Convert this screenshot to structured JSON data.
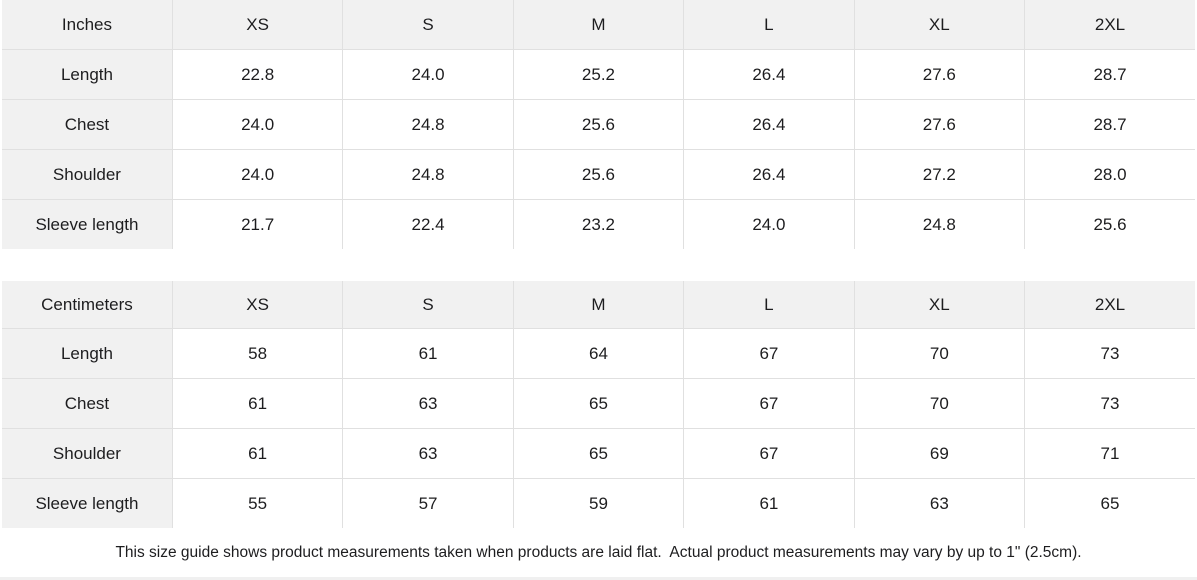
{
  "colors": {
    "header_bg": "#f1f1f1",
    "grid_border": "#e0e0e0",
    "text": "#1d1d1f",
    "background": "#ffffff"
  },
  "tables": [
    {
      "unit_label": "Inches",
      "columns": [
        "XS",
        "S",
        "M",
        "L",
        "XL",
        "2XL"
      ],
      "rows": [
        {
          "label": "Length",
          "values": [
            "22.8",
            "24.0",
            "25.2",
            "26.4",
            "27.6",
            "28.7"
          ]
        },
        {
          "label": "Chest",
          "values": [
            "24.0",
            "24.8",
            "25.6",
            "26.4",
            "27.6",
            "28.7"
          ]
        },
        {
          "label": "Shoulder",
          "values": [
            "24.0",
            "24.8",
            "25.6",
            "26.4",
            "27.2",
            "28.0"
          ]
        },
        {
          "label": "Sleeve length",
          "values": [
            "21.7",
            "22.4",
            "23.2",
            "24.0",
            "24.8",
            "25.6"
          ]
        }
      ]
    },
    {
      "unit_label": "Centimeters",
      "columns": [
        "XS",
        "S",
        "M",
        "L",
        "XL",
        "2XL"
      ],
      "rows": [
        {
          "label": "Length",
          "values": [
            "58",
            "61",
            "64",
            "67",
            "70",
            "73"
          ]
        },
        {
          "label": "Chest",
          "values": [
            "61",
            "63",
            "65",
            "67",
            "70",
            "73"
          ]
        },
        {
          "label": "Shoulder",
          "values": [
            "61",
            "63",
            "65",
            "67",
            "69",
            "71"
          ]
        },
        {
          "label": "Sleeve length",
          "values": [
            "55",
            "57",
            "59",
            "61",
            "63",
            "65"
          ]
        }
      ]
    }
  ],
  "footer": {
    "note": "This size guide shows product measurements taken when products are laid flat.  Actual product measurements may vary by up to 1\" (2.5cm)."
  }
}
